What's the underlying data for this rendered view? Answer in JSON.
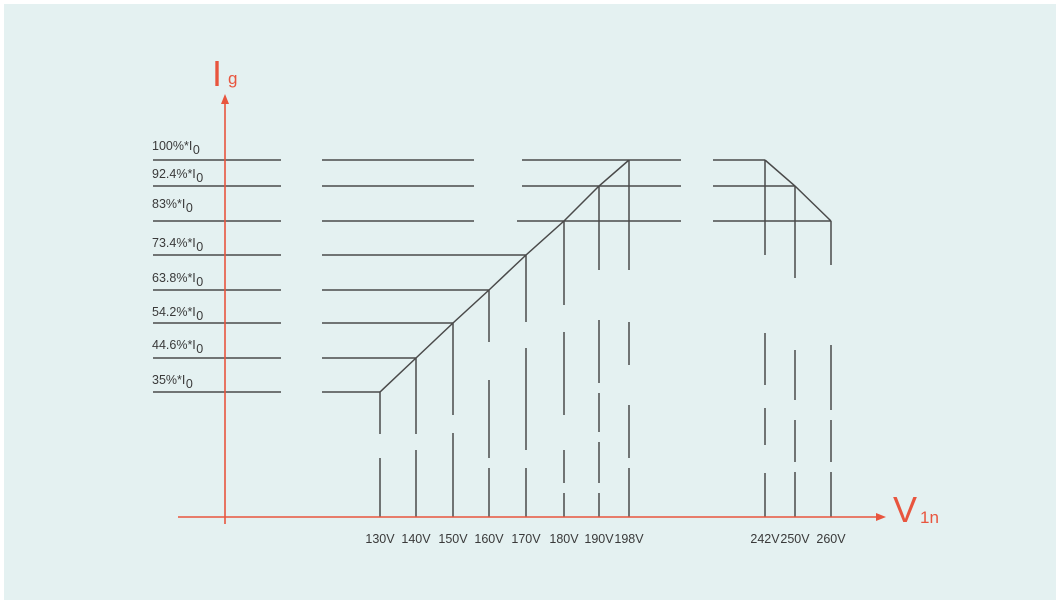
{
  "chart_data": {
    "type": "line",
    "title": "",
    "ylabel": {
      "main": "I",
      "sub": "g"
    },
    "xlabel": {
      "main": "V",
      "sub": "1n"
    },
    "y_tick_labels": [
      {
        "pct": 100,
        "main": "100%*I",
        "sub": "0"
      },
      {
        "pct": 92.4,
        "main": "92.4%*I",
        "sub": "0"
      },
      {
        "pct": 83,
        "main": "83%*I",
        "sub": "0"
      },
      {
        "pct": 73.4,
        "main": "73.4%*I",
        "sub": "0"
      },
      {
        "pct": 63.8,
        "main": "63.8%*I",
        "sub": "0"
      },
      {
        "pct": 54.2,
        "main": "54.2%*I",
        "sub": "0"
      },
      {
        "pct": 44.6,
        "main": "44.6%*I",
        "sub": "0"
      },
      {
        "pct": 35,
        "main": "35%*I",
        "sub": "0"
      }
    ],
    "x_tick_labels": [
      "130V",
      "140V",
      "150V",
      "160V",
      "170V",
      "180V",
      "190V",
      "198V",
      "242V",
      "250V",
      "260V"
    ],
    "series": [
      {
        "points": [
          {
            "x": 130,
            "y": 35
          },
          {
            "x": 140,
            "y": 44.6
          },
          {
            "x": 150,
            "y": 54.2
          },
          {
            "x": 160,
            "y": 63.8
          },
          {
            "x": 170,
            "y": 73.4
          },
          {
            "x": 180,
            "y": 83
          },
          {
            "x": 190,
            "y": 92.4
          },
          {
            "x": 198,
            "y": 100
          },
          {
            "x": 242,
            "y": 100
          },
          {
            "x": 250,
            "y": 92.4
          },
          {
            "x": 260,
            "y": 83
          }
        ]
      }
    ],
    "colors": {
      "axis": "#e8553e",
      "lines": "#4a4a4a",
      "background": "#e4f1f1"
    }
  }
}
